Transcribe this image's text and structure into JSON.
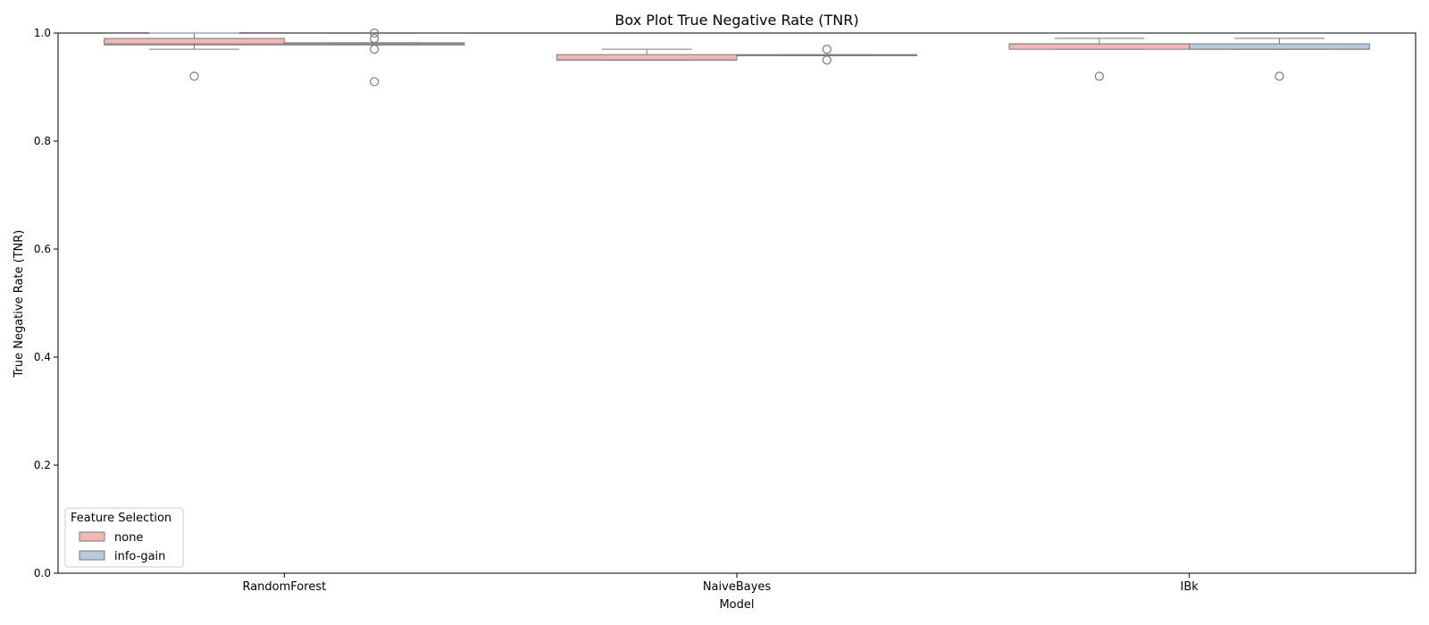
{
  "chart_data": {
    "type": "box",
    "title": "Box Plot True Negative Rate (TNR)",
    "xlabel": "Model",
    "ylabel": "True Negative Rate (TNR)",
    "ylim": [
      0.0,
      1.0
    ],
    "yticks": [
      "0.0",
      "0.2",
      "0.4",
      "0.6",
      "0.8",
      "1.0"
    ],
    "categories": [
      "RandomForest",
      "NaiveBayes",
      "IBk"
    ],
    "legend": {
      "title": "Feature Selection",
      "placement": "lower-left",
      "entries": [
        "none",
        "info-gain"
      ]
    },
    "series": [
      {
        "name": "none",
        "color": "#f2b8b8",
        "boxes": [
          {
            "whisker_low": 0.97,
            "q1": 0.978,
            "median": 0.98,
            "q3": 0.99,
            "whisker_high": 1.0,
            "outliers": [
              0.92
            ]
          },
          {
            "whisker_low": 0.95,
            "q1": 0.95,
            "median": 0.95,
            "q3": 0.96,
            "whisker_high": 0.97,
            "outliers": []
          },
          {
            "whisker_low": 0.97,
            "q1": 0.97,
            "median": 0.98,
            "q3": 0.98,
            "whisker_high": 0.99,
            "outliers": [
              0.92
            ]
          }
        ]
      },
      {
        "name": "info-gain",
        "color": "#b6cae0",
        "boxes": [
          {
            "whisker_low": 0.978,
            "q1": 0.978,
            "median": 0.98,
            "q3": 0.982,
            "whisker_high": 0.982,
            "outliers": [
              1.0,
              0.99,
              0.97,
              0.91
            ]
          },
          {
            "whisker_low": 0.958,
            "q1": 0.958,
            "median": 0.959,
            "q3": 0.96,
            "whisker_high": 0.96,
            "outliers": [
              0.97,
              0.95
            ]
          },
          {
            "whisker_low": 0.97,
            "q1": 0.97,
            "median": 0.97,
            "q3": 0.98,
            "whisker_high": 0.99,
            "outliers": [
              0.92
            ]
          }
        ]
      }
    ],
    "colors": {
      "box_edge": "#7a7a7a",
      "axes": "#000000"
    }
  }
}
